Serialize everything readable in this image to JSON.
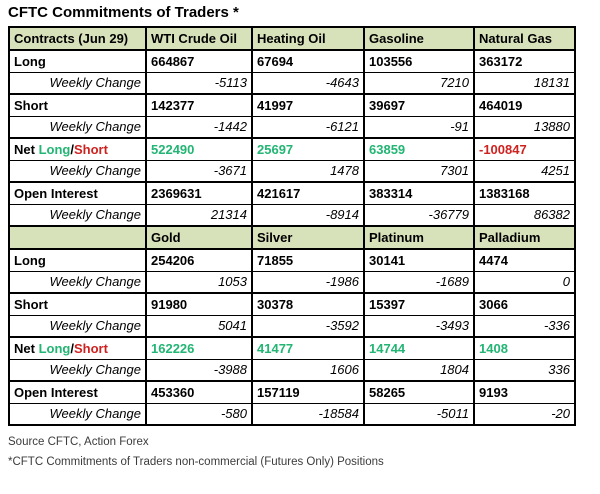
{
  "chart_data": {
    "type": "table",
    "title": "CFTC Commitments of Traders *",
    "sections": [
      {
        "header": [
          "Contracts (Jun 29)",
          "WTI Crude Oil",
          "Heating Oil",
          "Gasoline",
          "Natural Gas"
        ],
        "rows": [
          {
            "label": "Long",
            "type": "main",
            "values": [
              "664867",
              "67694",
              "103556",
              "363172"
            ]
          },
          {
            "label": "Weekly Change",
            "type": "change",
            "values": [
              "-5113",
              "-4643",
              "7210",
              "18131"
            ]
          },
          {
            "label": "Short",
            "type": "main",
            "values": [
              "142377",
              "41997",
              "39697",
              "464019"
            ]
          },
          {
            "label": "Weekly Change",
            "type": "change",
            "values": [
              "-1442",
              "-6121",
              "-91",
              "13880"
            ]
          },
          {
            "label": "Net Long/Short",
            "type": "net",
            "values": [
              "522490",
              "25697",
              "63859",
              "-100847"
            ]
          },
          {
            "label": "Weekly Change",
            "type": "change",
            "values": [
              "-3671",
              "1478",
              "7301",
              "4251"
            ]
          },
          {
            "label": "Open Interest",
            "type": "main",
            "values": [
              "2369631",
              "421617",
              "383314",
              "1383168"
            ]
          },
          {
            "label": "Weekly Change",
            "type": "change",
            "values": [
              "21314",
              "-8914",
              "-36779",
              "86382"
            ]
          }
        ]
      },
      {
        "header": [
          "",
          "Gold",
          "Silver",
          "Platinum",
          "Palladium"
        ],
        "rows": [
          {
            "label": "Long",
            "type": "main",
            "values": [
              "254206",
              "71855",
              "30141",
              "4474"
            ]
          },
          {
            "label": "Weekly Change",
            "type": "change",
            "values": [
              "1053",
              "-1986",
              "-1689",
              "0"
            ]
          },
          {
            "label": "Short",
            "type": "main",
            "values": [
              "91980",
              "30378",
              "15397",
              "3066"
            ]
          },
          {
            "label": "Weekly Change",
            "type": "change",
            "values": [
              "5041",
              "-3592",
              "-3493",
              "-336"
            ]
          },
          {
            "label": "Net Long/Short",
            "type": "net",
            "values": [
              "162226",
              "41477",
              "14744",
              "1408"
            ]
          },
          {
            "label": "Weekly Change",
            "type": "change",
            "values": [
              "-3988",
              "1606",
              "1804",
              "336"
            ]
          },
          {
            "label": "Open Interest",
            "type": "main",
            "values": [
              "453360",
              "157119",
              "58265",
              "9193"
            ]
          },
          {
            "label": "Weekly Change",
            "type": "change",
            "values": [
              "-580",
              "-18584",
              "-5011",
              "-20"
            ]
          }
        ]
      }
    ]
  },
  "net_label": {
    "prefix": "Net ",
    "long": "Long",
    "separator": "/",
    "short": "Short"
  },
  "footer": {
    "source": "Source CFTC, Action Forex",
    "note": "*CFTC Commitments of Traders non-commercial (Futures Only) Positions"
  },
  "colors": {
    "header_bg": "#d8e2ba",
    "positive_green": "#22b573",
    "negative_red": "#cd2320",
    "border": "#000000"
  }
}
